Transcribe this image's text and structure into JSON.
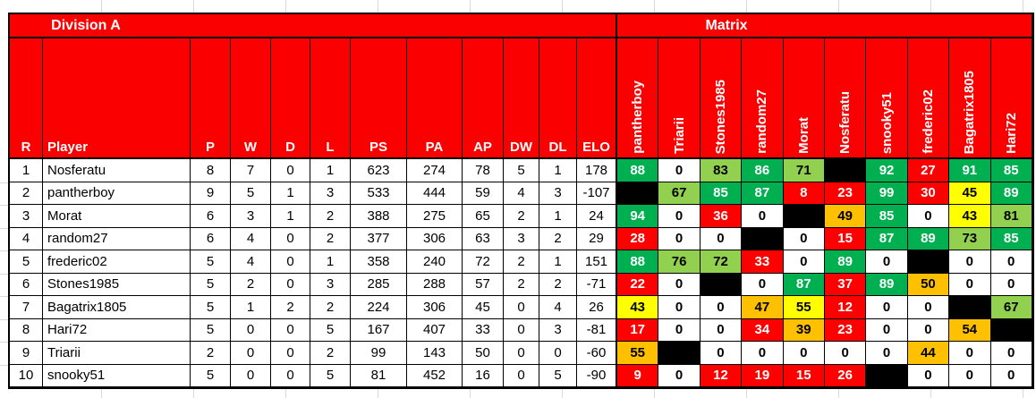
{
  "sheet": {
    "division_title": "Division A",
    "matrix_title": "Matrix",
    "left_headers": [
      "R",
      "Player",
      "P",
      "W",
      "D",
      "L",
      "PS",
      "PA",
      "AP",
      "DW",
      "DL",
      "ELO"
    ],
    "matrix_headers": [
      "pantherboy",
      "Triarii",
      "Stones1985",
      "random27",
      "Morat",
      "Nosferatu",
      "snooky51",
      "frederic02",
      "Bagatrix1805",
      "Hari72"
    ],
    "colors": {
      "header_red": "#fa0000",
      "g": "#00B050",
      "lg": "#92D050",
      "y": "#FFFF00",
      "o": "#FFC000",
      "r": "#FF0000",
      "w": "#FFFFFF",
      "b": "#000000"
    },
    "rows": [
      {
        "stats": [
          "1",
          "Nosferatu",
          "8",
          "7",
          "0",
          "1",
          "623",
          "274",
          "78",
          "5",
          "1",
          "178"
        ],
        "matrix": [
          [
            "88",
            "g"
          ],
          [
            "0",
            "w"
          ],
          [
            "83",
            "lg"
          ],
          [
            "86",
            "g"
          ],
          [
            "71",
            "lg"
          ],
          [
            "",
            "b"
          ],
          [
            "92",
            "g"
          ],
          [
            "27",
            "r"
          ],
          [
            "91",
            "g"
          ],
          [
            "85",
            "g"
          ]
        ]
      },
      {
        "stats": [
          "2",
          "pantherboy",
          "9",
          "5",
          "1",
          "3",
          "533",
          "444",
          "59",
          "4",
          "3",
          "-107"
        ],
        "matrix": [
          [
            "",
            "b"
          ],
          [
            "67",
            "lg"
          ],
          [
            "85",
            "g"
          ],
          [
            "87",
            "g"
          ],
          [
            "8",
            "r"
          ],
          [
            "23",
            "r"
          ],
          [
            "99",
            "g"
          ],
          [
            "30",
            "r"
          ],
          [
            "45",
            "y"
          ],
          [
            "89",
            "g"
          ]
        ]
      },
      {
        "stats": [
          "3",
          "Morat",
          "6",
          "3",
          "1",
          "2",
          "388",
          "275",
          "65",
          "2",
          "1",
          "24"
        ],
        "matrix": [
          [
            "94",
            "g"
          ],
          [
            "0",
            "w"
          ],
          [
            "36",
            "r"
          ],
          [
            "0",
            "w"
          ],
          [
            "",
            "b"
          ],
          [
            "49",
            "o"
          ],
          [
            "85",
            "g"
          ],
          [
            "0",
            "w"
          ],
          [
            "43",
            "y"
          ],
          [
            "81",
            "lg"
          ]
        ]
      },
      {
        "stats": [
          "4",
          "random27",
          "6",
          "4",
          "0",
          "2",
          "377",
          "306",
          "63",
          "3",
          "2",
          "29"
        ],
        "matrix": [
          [
            "28",
            "r"
          ],
          [
            "0",
            "w"
          ],
          [
            "0",
            "w"
          ],
          [
            "",
            "b"
          ],
          [
            "0",
            "w"
          ],
          [
            "15",
            "r"
          ],
          [
            "87",
            "g"
          ],
          [
            "89",
            "g"
          ],
          [
            "73",
            "lg"
          ],
          [
            "85",
            "g"
          ]
        ]
      },
      {
        "stats": [
          "5",
          "frederic02",
          "5",
          "4",
          "0",
          "1",
          "358",
          "240",
          "72",
          "2",
          "1",
          "151"
        ],
        "matrix": [
          [
            "88",
            "g"
          ],
          [
            "76",
            "lg"
          ],
          [
            "72",
            "lg"
          ],
          [
            "33",
            "r"
          ],
          [
            "0",
            "w"
          ],
          [
            "89",
            "g"
          ],
          [
            "0",
            "w"
          ],
          [
            "",
            "b"
          ],
          [
            "0",
            "w"
          ],
          [
            "0",
            "w"
          ]
        ]
      },
      {
        "stats": [
          "6",
          "Stones1985",
          "5",
          "2",
          "0",
          "3",
          "285",
          "288",
          "57",
          "2",
          "2",
          "-71"
        ],
        "matrix": [
          [
            "22",
            "r"
          ],
          [
            "0",
            "w"
          ],
          [
            "",
            "b"
          ],
          [
            "0",
            "w"
          ],
          [
            "87",
            "g"
          ],
          [
            "37",
            "r"
          ],
          [
            "89",
            "g"
          ],
          [
            "50",
            "o"
          ],
          [
            "0",
            "w"
          ],
          [
            "0",
            "w"
          ]
        ]
      },
      {
        "stats": [
          "7",
          "Bagatrix1805",
          "5",
          "1",
          "2",
          "2",
          "224",
          "306",
          "45",
          "0",
          "4",
          "26"
        ],
        "matrix": [
          [
            "43",
            "y"
          ],
          [
            "0",
            "w"
          ],
          [
            "0",
            "w"
          ],
          [
            "47",
            "o"
          ],
          [
            "55",
            "y"
          ],
          [
            "12",
            "r"
          ],
          [
            "0",
            "w"
          ],
          [
            "0",
            "w"
          ],
          [
            "",
            "b"
          ],
          [
            "67",
            "lg"
          ]
        ]
      },
      {
        "stats": [
          "8",
          "Hari72",
          "5",
          "0",
          "0",
          "5",
          "167",
          "407",
          "33",
          "0",
          "3",
          "-81"
        ],
        "matrix": [
          [
            "17",
            "r"
          ],
          [
            "0",
            "w"
          ],
          [
            "0",
            "w"
          ],
          [
            "34",
            "r"
          ],
          [
            "39",
            "o"
          ],
          [
            "23",
            "r"
          ],
          [
            "0",
            "w"
          ],
          [
            "0",
            "w"
          ],
          [
            "54",
            "o"
          ],
          [
            "",
            "b"
          ]
        ]
      },
      {
        "stats": [
          "9",
          "Triarii",
          "2",
          "0",
          "0",
          "2",
          "99",
          "143",
          "50",
          "0",
          "0",
          "-60"
        ],
        "matrix": [
          [
            "55",
            "o"
          ],
          [
            "",
            "b"
          ],
          [
            "0",
            "w"
          ],
          [
            "0",
            "w"
          ],
          [
            "0",
            "w"
          ],
          [
            "0",
            "w"
          ],
          [
            "0",
            "w"
          ],
          [
            "44",
            "o"
          ],
          [
            "0",
            "w"
          ],
          [
            "0",
            "w"
          ]
        ]
      },
      {
        "stats": [
          "10",
          "snooky51",
          "5",
          "0",
          "0",
          "5",
          "81",
          "452",
          "16",
          "0",
          "5",
          "-90"
        ],
        "matrix": [
          [
            "9",
            "r"
          ],
          [
            "0",
            "w"
          ],
          [
            "12",
            "r"
          ],
          [
            "19",
            "r"
          ],
          [
            "15",
            "r"
          ],
          [
            "26",
            "r"
          ],
          [
            "",
            "b"
          ],
          [
            "0",
            "w"
          ],
          [
            "0",
            "w"
          ],
          [
            "0",
            "w"
          ]
        ]
      }
    ]
  }
}
